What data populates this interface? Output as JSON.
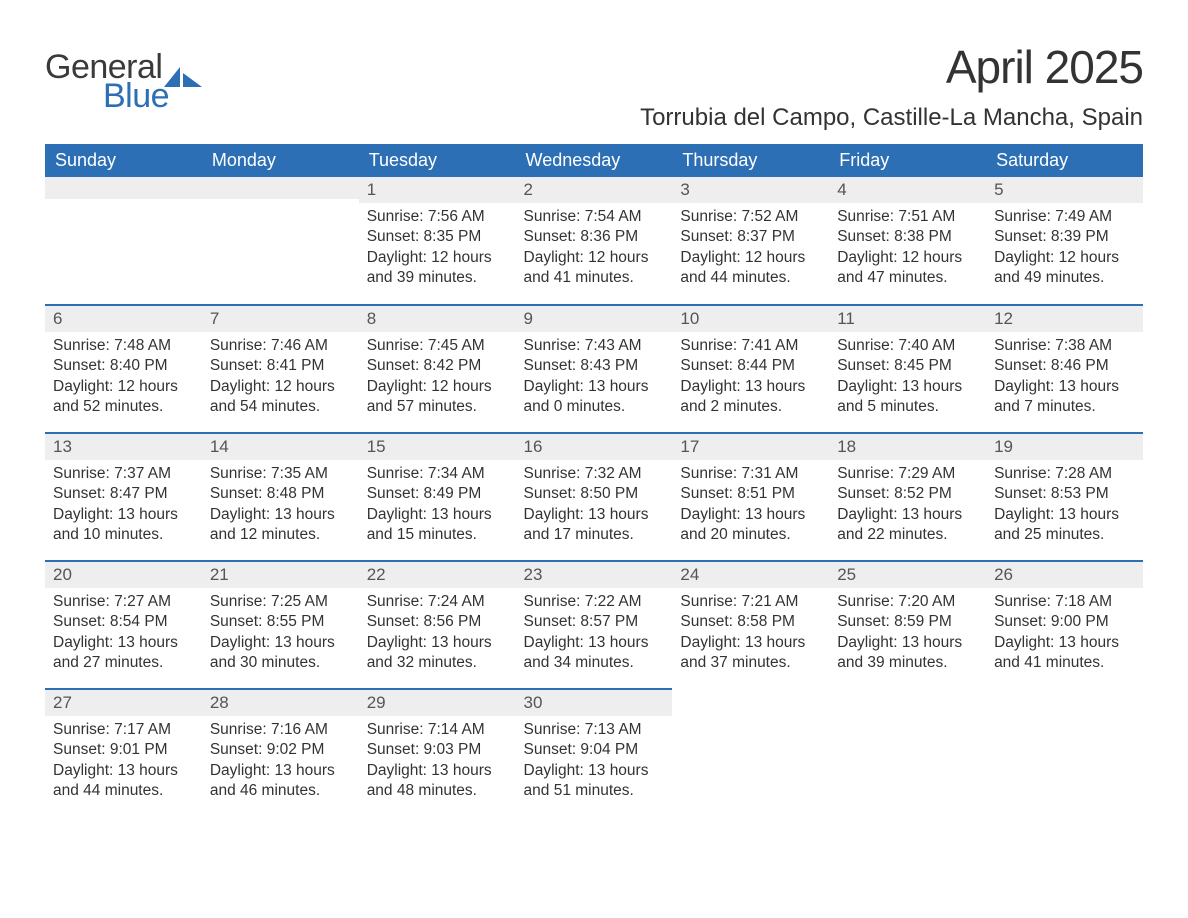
{
  "logo": {
    "word1": "General",
    "word2": "Blue",
    "sail_color": "#2d6fb5",
    "text_color_1": "#3a3a3a",
    "text_color_2": "#2d6fb5"
  },
  "title": "April 2025",
  "location": "Torrubia del Campo, Castille-La Mancha, Spain",
  "colors": {
    "header_bg": "#2d6fb5",
    "header_text": "#ffffff",
    "daynum_bg": "#eeeeee",
    "daynum_text": "#555555",
    "body_text": "#333333",
    "row_divider": "#2d6fb5",
    "page_bg": "#ffffff"
  },
  "fonts": {
    "title_size_pt": 34,
    "location_size_pt": 18,
    "header_size_pt": 14,
    "body_size_pt": 12
  },
  "day_headers": [
    "Sunday",
    "Monday",
    "Tuesday",
    "Wednesday",
    "Thursday",
    "Friday",
    "Saturday"
  ],
  "weeks": [
    [
      null,
      null,
      {
        "n": "1",
        "sunrise": "Sunrise: 7:56 AM",
        "sunset": "Sunset: 8:35 PM",
        "dl1": "Daylight: 12 hours",
        "dl2": "and 39 minutes."
      },
      {
        "n": "2",
        "sunrise": "Sunrise: 7:54 AM",
        "sunset": "Sunset: 8:36 PM",
        "dl1": "Daylight: 12 hours",
        "dl2": "and 41 minutes."
      },
      {
        "n": "3",
        "sunrise": "Sunrise: 7:52 AM",
        "sunset": "Sunset: 8:37 PM",
        "dl1": "Daylight: 12 hours",
        "dl2": "and 44 minutes."
      },
      {
        "n": "4",
        "sunrise": "Sunrise: 7:51 AM",
        "sunset": "Sunset: 8:38 PM",
        "dl1": "Daylight: 12 hours",
        "dl2": "and 47 minutes."
      },
      {
        "n": "5",
        "sunrise": "Sunrise: 7:49 AM",
        "sunset": "Sunset: 8:39 PM",
        "dl1": "Daylight: 12 hours",
        "dl2": "and 49 minutes."
      }
    ],
    [
      {
        "n": "6",
        "sunrise": "Sunrise: 7:48 AM",
        "sunset": "Sunset: 8:40 PM",
        "dl1": "Daylight: 12 hours",
        "dl2": "and 52 minutes."
      },
      {
        "n": "7",
        "sunrise": "Sunrise: 7:46 AM",
        "sunset": "Sunset: 8:41 PM",
        "dl1": "Daylight: 12 hours",
        "dl2": "and 54 minutes."
      },
      {
        "n": "8",
        "sunrise": "Sunrise: 7:45 AM",
        "sunset": "Sunset: 8:42 PM",
        "dl1": "Daylight: 12 hours",
        "dl2": "and 57 minutes."
      },
      {
        "n": "9",
        "sunrise": "Sunrise: 7:43 AM",
        "sunset": "Sunset: 8:43 PM",
        "dl1": "Daylight: 13 hours",
        "dl2": "and 0 minutes."
      },
      {
        "n": "10",
        "sunrise": "Sunrise: 7:41 AM",
        "sunset": "Sunset: 8:44 PM",
        "dl1": "Daylight: 13 hours",
        "dl2": "and 2 minutes."
      },
      {
        "n": "11",
        "sunrise": "Sunrise: 7:40 AM",
        "sunset": "Sunset: 8:45 PM",
        "dl1": "Daylight: 13 hours",
        "dl2": "and 5 minutes."
      },
      {
        "n": "12",
        "sunrise": "Sunrise: 7:38 AM",
        "sunset": "Sunset: 8:46 PM",
        "dl1": "Daylight: 13 hours",
        "dl2": "and 7 minutes."
      }
    ],
    [
      {
        "n": "13",
        "sunrise": "Sunrise: 7:37 AM",
        "sunset": "Sunset: 8:47 PM",
        "dl1": "Daylight: 13 hours",
        "dl2": "and 10 minutes."
      },
      {
        "n": "14",
        "sunrise": "Sunrise: 7:35 AM",
        "sunset": "Sunset: 8:48 PM",
        "dl1": "Daylight: 13 hours",
        "dl2": "and 12 minutes."
      },
      {
        "n": "15",
        "sunrise": "Sunrise: 7:34 AM",
        "sunset": "Sunset: 8:49 PM",
        "dl1": "Daylight: 13 hours",
        "dl2": "and 15 minutes."
      },
      {
        "n": "16",
        "sunrise": "Sunrise: 7:32 AM",
        "sunset": "Sunset: 8:50 PM",
        "dl1": "Daylight: 13 hours",
        "dl2": "and 17 minutes."
      },
      {
        "n": "17",
        "sunrise": "Sunrise: 7:31 AM",
        "sunset": "Sunset: 8:51 PM",
        "dl1": "Daylight: 13 hours",
        "dl2": "and 20 minutes."
      },
      {
        "n": "18",
        "sunrise": "Sunrise: 7:29 AM",
        "sunset": "Sunset: 8:52 PM",
        "dl1": "Daylight: 13 hours",
        "dl2": "and 22 minutes."
      },
      {
        "n": "19",
        "sunrise": "Sunrise: 7:28 AM",
        "sunset": "Sunset: 8:53 PM",
        "dl1": "Daylight: 13 hours",
        "dl2": "and 25 minutes."
      }
    ],
    [
      {
        "n": "20",
        "sunrise": "Sunrise: 7:27 AM",
        "sunset": "Sunset: 8:54 PM",
        "dl1": "Daylight: 13 hours",
        "dl2": "and 27 minutes."
      },
      {
        "n": "21",
        "sunrise": "Sunrise: 7:25 AM",
        "sunset": "Sunset: 8:55 PM",
        "dl1": "Daylight: 13 hours",
        "dl2": "and 30 minutes."
      },
      {
        "n": "22",
        "sunrise": "Sunrise: 7:24 AM",
        "sunset": "Sunset: 8:56 PM",
        "dl1": "Daylight: 13 hours",
        "dl2": "and 32 minutes."
      },
      {
        "n": "23",
        "sunrise": "Sunrise: 7:22 AM",
        "sunset": "Sunset: 8:57 PM",
        "dl1": "Daylight: 13 hours",
        "dl2": "and 34 minutes."
      },
      {
        "n": "24",
        "sunrise": "Sunrise: 7:21 AM",
        "sunset": "Sunset: 8:58 PM",
        "dl1": "Daylight: 13 hours",
        "dl2": "and 37 minutes."
      },
      {
        "n": "25",
        "sunrise": "Sunrise: 7:20 AM",
        "sunset": "Sunset: 8:59 PM",
        "dl1": "Daylight: 13 hours",
        "dl2": "and 39 minutes."
      },
      {
        "n": "26",
        "sunrise": "Sunrise: 7:18 AM",
        "sunset": "Sunset: 9:00 PM",
        "dl1": "Daylight: 13 hours",
        "dl2": "and 41 minutes."
      }
    ],
    [
      {
        "n": "27",
        "sunrise": "Sunrise: 7:17 AM",
        "sunset": "Sunset: 9:01 PM",
        "dl1": "Daylight: 13 hours",
        "dl2": "and 44 minutes."
      },
      {
        "n": "28",
        "sunrise": "Sunrise: 7:16 AM",
        "sunset": "Sunset: 9:02 PM",
        "dl1": "Daylight: 13 hours",
        "dl2": "and 46 minutes."
      },
      {
        "n": "29",
        "sunrise": "Sunrise: 7:14 AM",
        "sunset": "Sunset: 9:03 PM",
        "dl1": "Daylight: 13 hours",
        "dl2": "and 48 minutes."
      },
      {
        "n": "30",
        "sunrise": "Sunrise: 7:13 AM",
        "sunset": "Sunset: 9:04 PM",
        "dl1": "Daylight: 13 hours",
        "dl2": "and 51 minutes."
      },
      null,
      null,
      null
    ]
  ]
}
